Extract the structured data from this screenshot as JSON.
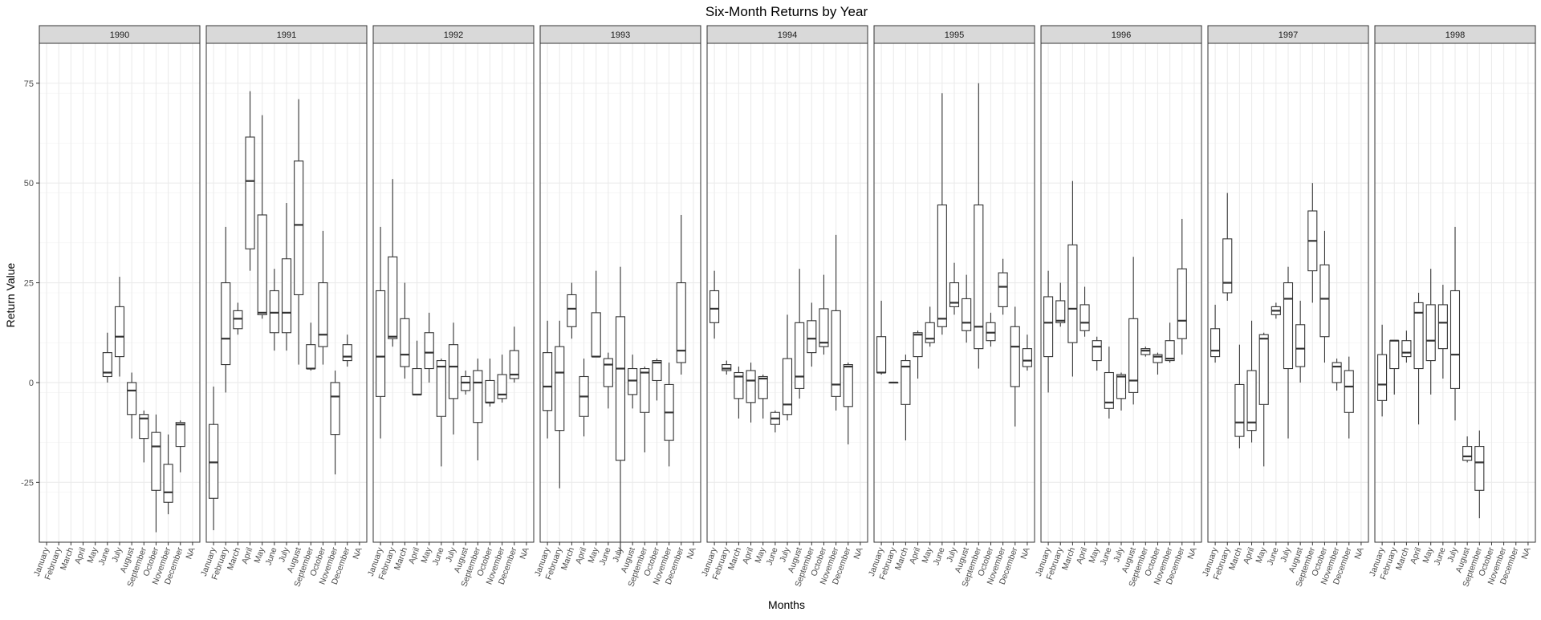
{
  "chart_data": {
    "type": "boxplot",
    "title": "Six-Month Returns by Year",
    "xlabel": "Months",
    "ylabel": "Return Value",
    "ylim": [
      -40,
      85
    ],
    "y_ticks": [
      -25,
      0,
      25,
      50,
      75
    ],
    "grid": true,
    "colors": {
      "strip_fill": "#d9d9d9",
      "panel_border": "#333333",
      "grid": "#ebebeb",
      "box": "#333333"
    },
    "categories": [
      "January",
      "February",
      "March",
      "April",
      "May",
      "June",
      "July",
      "August",
      "September",
      "October",
      "November",
      "December",
      "NA"
    ],
    "facets": [
      {
        "label": "1990",
        "boxes": [
          {
            "month": "June",
            "whislo": 0,
            "q1": 1.5,
            "med": 2.5,
            "q3": 7.5,
            "whishi": 12.5
          },
          {
            "month": "July",
            "whislo": 1.5,
            "q1": 6.5,
            "med": 11.5,
            "q3": 19,
            "whishi": 26.5
          },
          {
            "month": "August",
            "whislo": -14,
            "q1": -8,
            "med": -2,
            "q3": 0,
            "whishi": 2.5
          },
          {
            "month": "September",
            "whislo": -20,
            "q1": -14,
            "med": -9,
            "q3": -8,
            "whishi": -7
          },
          {
            "month": "October",
            "whislo": -37.5,
            "q1": -27,
            "med": -16,
            "q3": -12.5,
            "whishi": -8
          },
          {
            "month": "November",
            "whislo": -33,
            "q1": -30,
            "med": -27.5,
            "q3": -20.5,
            "whishi": -13
          },
          {
            "month": "December",
            "whislo": -22.5,
            "q1": -16,
            "med": -10.5,
            "q3": -10,
            "whishi": -9.5
          }
        ]
      },
      {
        "label": "1991",
        "boxes": [
          {
            "month": "January",
            "whislo": -37,
            "q1": -29,
            "med": -20,
            "q3": -10.5,
            "whishi": -1
          },
          {
            "month": "February",
            "whislo": -2.5,
            "q1": 4.5,
            "med": 11,
            "q3": 25,
            "whishi": 39
          },
          {
            "month": "March",
            "whislo": 12,
            "q1": 13.5,
            "med": 16,
            "q3": 18,
            "whishi": 20
          },
          {
            "month": "April",
            "whislo": 28,
            "q1": 33.5,
            "med": 50.5,
            "q3": 61.5,
            "whishi": 73
          },
          {
            "month": "May",
            "whislo": 16,
            "q1": 17,
            "med": 17.5,
            "q3": 42,
            "whishi": 67
          },
          {
            "month": "June",
            "whislo": 8,
            "q1": 12.5,
            "med": 17.5,
            "q3": 23,
            "whishi": 28.5
          },
          {
            "month": "July",
            "whislo": 8,
            "q1": 12.5,
            "med": 17.5,
            "q3": 31,
            "whishi": 45
          },
          {
            "month": "August",
            "whislo": 4.5,
            "q1": 22,
            "med": 39.5,
            "q3": 55.5,
            "whishi": 71
          },
          {
            "month": "September",
            "whislo": 3,
            "q1": 3.5,
            "med": 3.5,
            "q3": 9.5,
            "whishi": 15
          },
          {
            "month": "October",
            "whislo": 4.5,
            "q1": 9,
            "med": 12,
            "q3": 25,
            "whishi": 38
          },
          {
            "month": "November",
            "whislo": -23,
            "q1": -13,
            "med": -3.5,
            "q3": 0,
            "whishi": 3
          },
          {
            "month": "December",
            "whislo": 4,
            "q1": 5.5,
            "med": 6.5,
            "q3": 9.5,
            "whishi": 12
          }
        ]
      },
      {
        "label": "1992",
        "boxes": [
          {
            "month": "January",
            "whislo": -14,
            "q1": -3.5,
            "med": 6.5,
            "q3": 23,
            "whishi": 39
          },
          {
            "month": "February",
            "whislo": 9,
            "q1": 11,
            "med": 11.5,
            "q3": 31.5,
            "whishi": 51
          },
          {
            "month": "March",
            "whislo": 1,
            "q1": 4,
            "med": 7,
            "q3": 16,
            "whishi": 25
          },
          {
            "month": "April",
            "whislo": -3,
            "q1": -3,
            "med": -3,
            "q3": 3.5,
            "whishi": 10.5
          },
          {
            "month": "May",
            "whislo": 0,
            "q1": 3.5,
            "med": 7.5,
            "q3": 12.5,
            "whishi": 17.5
          },
          {
            "month": "June",
            "whislo": -21,
            "q1": -8.5,
            "med": 4,
            "q3": 5.5,
            "whishi": 6
          },
          {
            "month": "July",
            "whislo": -13,
            "q1": -4,
            "med": 4,
            "q3": 9.5,
            "whishi": 15
          },
          {
            "month": "August",
            "whislo": -3,
            "q1": -2,
            "med": 0,
            "q3": 1.5,
            "whishi": 3
          },
          {
            "month": "September",
            "whislo": -19.5,
            "q1": -10,
            "med": 0,
            "q3": 3,
            "whishi": 6
          },
          {
            "month": "October",
            "whislo": -6,
            "q1": -5,
            "med": -5,
            "q3": 0.5,
            "whishi": 6
          },
          {
            "month": "November",
            "whislo": -5,
            "q1": -4,
            "med": -3,
            "q3": 2,
            "whishi": 7
          },
          {
            "month": "December",
            "whislo": 0,
            "q1": 1,
            "med": 2,
            "q3": 8,
            "whishi": 14
          }
        ]
      },
      {
        "label": "1993",
        "boxes": [
          {
            "month": "January",
            "whislo": -14,
            "q1": -7,
            "med": -1,
            "q3": 7.5,
            "whishi": 15.5
          },
          {
            "month": "February",
            "whislo": -26.5,
            "q1": -12,
            "med": 2.5,
            "q3": 9,
            "whishi": 15.5
          },
          {
            "month": "March",
            "whislo": 11,
            "q1": 14,
            "med": 18.5,
            "q3": 22,
            "whishi": 25
          },
          {
            "month": "April",
            "whislo": -13.5,
            "q1": -8.5,
            "med": -3.5,
            "q3": 1.5,
            "whishi": 6
          },
          {
            "month": "May",
            "whislo": 6.5,
            "q1": 6.5,
            "med": 6.5,
            "q3": 17.5,
            "whishi": 28
          },
          {
            "month": "June",
            "whislo": -6.5,
            "q1": -1,
            "med": 4.5,
            "q3": 6,
            "whishi": 7.5
          },
          {
            "month": "July",
            "whislo": -43,
            "q1": -19.5,
            "med": 3.5,
            "q3": 16.5,
            "whishi": 29
          },
          {
            "month": "August",
            "whislo": -6.5,
            "q1": -3,
            "med": 0.5,
            "q3": 3.5,
            "whishi": 7
          },
          {
            "month": "September",
            "whislo": -17.5,
            "q1": -7.5,
            "med": 2.5,
            "q3": 3.5,
            "whishi": 4
          },
          {
            "month": "October",
            "whislo": -4.5,
            "q1": 0.5,
            "med": 5,
            "q3": 5.5,
            "whishi": 6
          },
          {
            "month": "November",
            "whislo": -21,
            "q1": -14.5,
            "med": -7.5,
            "q3": -0.5,
            "whishi": 5
          },
          {
            "month": "December",
            "whislo": 2,
            "q1": 5,
            "med": 8,
            "q3": 25,
            "whishi": 42
          }
        ]
      },
      {
        "label": "1994",
        "boxes": [
          {
            "month": "January",
            "whislo": 11,
            "q1": 15,
            "med": 18.5,
            "q3": 23,
            "whishi": 28
          },
          {
            "month": "February",
            "whislo": 2,
            "q1": 3,
            "med": 3.5,
            "q3": 4.5,
            "whishi": 5.5
          },
          {
            "month": "March",
            "whislo": -9,
            "q1": -4,
            "med": 1.5,
            "q3": 2.5,
            "whishi": 4
          },
          {
            "month": "April",
            "whislo": -10,
            "q1": -5,
            "med": 0.5,
            "q3": 3,
            "whishi": 5
          },
          {
            "month": "May",
            "whislo": -9,
            "q1": -4,
            "med": 1,
            "q3": 1.5,
            "whishi": 2
          },
          {
            "month": "June",
            "whislo": -12.5,
            "q1": -10.5,
            "med": -9,
            "q3": -7.5,
            "whishi": -7
          },
          {
            "month": "July",
            "whislo": -9.5,
            "q1": -8,
            "med": -5.5,
            "q3": 6,
            "whishi": 17
          },
          {
            "month": "August",
            "whislo": -4,
            "q1": -1.5,
            "med": 1.5,
            "q3": 15,
            "whishi": 28.5
          },
          {
            "month": "September",
            "whislo": 4,
            "q1": 7.5,
            "med": 11,
            "q3": 15.5,
            "whishi": 20
          },
          {
            "month": "October",
            "whislo": 7,
            "q1": 9,
            "med": 10,
            "q3": 18.5,
            "whishi": 27
          },
          {
            "month": "November",
            "whislo": -7,
            "q1": -3.5,
            "med": -0.5,
            "q3": 18,
            "whishi": 37
          },
          {
            "month": "December",
            "whislo": -15.5,
            "q1": -6,
            "med": 4,
            "q3": 4.5,
            "whishi": 5
          }
        ]
      },
      {
        "label": "1995",
        "boxes": [
          {
            "month": "January",
            "whislo": 2,
            "q1": 2.5,
            "med": 2.5,
            "q3": 11.5,
            "whishi": 20.5
          },
          {
            "month": "February",
            "whislo": 0,
            "q1": 0,
            "med": 0,
            "q3": 0,
            "whishi": 0
          },
          {
            "month": "March",
            "whislo": -14.5,
            "q1": -5.5,
            "med": 4,
            "q3": 5.5,
            "whishi": 7
          },
          {
            "month": "April",
            "whislo": 1,
            "q1": 6.5,
            "med": 12,
            "q3": 12.5,
            "whishi": 13
          },
          {
            "month": "May",
            "whislo": 9,
            "q1": 10,
            "med": 11,
            "q3": 15,
            "whishi": 19
          },
          {
            "month": "June",
            "whislo": 12,
            "q1": 14,
            "med": 16,
            "q3": 44.5,
            "whishi": 72.5
          },
          {
            "month": "July",
            "whislo": 17,
            "q1": 19,
            "med": 20,
            "q3": 25,
            "whishi": 30
          },
          {
            "month": "August",
            "whislo": 10,
            "q1": 13,
            "med": 15,
            "q3": 21,
            "whishi": 27
          },
          {
            "month": "September",
            "whislo": 3.5,
            "q1": 8.5,
            "med": 14,
            "q3": 44.5,
            "whishi": 75
          },
          {
            "month": "October",
            "whislo": 9,
            "q1": 10.5,
            "med": 12.5,
            "q3": 15,
            "whishi": 17.5
          },
          {
            "month": "November",
            "whislo": 17,
            "q1": 19,
            "med": 24,
            "q3": 27.5,
            "whishi": 31
          },
          {
            "month": "December",
            "whislo": -11,
            "q1": -1,
            "med": 9,
            "q3": 14,
            "whishi": 19
          },
          {
            "month": "NA",
            "whislo": 3,
            "q1": 4,
            "med": 5.5,
            "q3": 8.5,
            "whishi": 12
          }
        ]
      },
      {
        "label": "1996",
        "boxes": [
          {
            "month": "January",
            "whislo": -2.5,
            "q1": 6.5,
            "med": 15,
            "q3": 21.5,
            "whishi": 28
          },
          {
            "month": "February",
            "whislo": 14,
            "q1": 15,
            "med": 15.5,
            "q3": 20.5,
            "whishi": 25
          },
          {
            "month": "March",
            "whislo": 1.5,
            "q1": 10,
            "med": 18.5,
            "q3": 34.5,
            "whishi": 50.5
          },
          {
            "month": "April",
            "whislo": 11.5,
            "q1": 13,
            "med": 15,
            "q3": 19.5,
            "whishi": 24
          },
          {
            "month": "May",
            "whislo": 3,
            "q1": 5.5,
            "med": 9,
            "q3": 10.5,
            "whishi": 11.5
          },
          {
            "month": "June",
            "whislo": -9,
            "q1": -6.5,
            "med": -5,
            "q3": 2.5,
            "whishi": 9
          },
          {
            "month": "July",
            "whislo": -7,
            "q1": -4,
            "med": 1.5,
            "q3": 2,
            "whishi": 2.5
          },
          {
            "month": "August",
            "whislo": -5.5,
            "q1": -2.5,
            "med": 0.5,
            "q3": 16,
            "whishi": 31.5
          },
          {
            "month": "September",
            "whislo": 6.5,
            "q1": 7,
            "med": 8,
            "q3": 8.5,
            "whishi": 9
          },
          {
            "month": "October",
            "whislo": 2,
            "q1": 5,
            "med": 6.5,
            "q3": 7,
            "whishi": 7.5
          },
          {
            "month": "November",
            "whislo": 5,
            "q1": 5.5,
            "med": 6,
            "q3": 10.5,
            "whishi": 15
          },
          {
            "month": "December",
            "whislo": 7,
            "q1": 11,
            "med": 15.5,
            "q3": 28.5,
            "whishi": 41
          }
        ]
      },
      {
        "label": "1997",
        "boxes": [
          {
            "month": "January",
            "whislo": 5,
            "q1": 6.5,
            "med": 8,
            "q3": 13.5,
            "whishi": 19.5
          },
          {
            "month": "February",
            "whislo": 20.5,
            "q1": 22.5,
            "med": 25,
            "q3": 36,
            "whishi": 47.5
          },
          {
            "month": "March",
            "whislo": -16.5,
            "q1": -13.5,
            "med": -10,
            "q3": -0.5,
            "whishi": 9.5
          },
          {
            "month": "April",
            "whislo": -15,
            "q1": -12,
            "med": -10,
            "q3": 3,
            "whishi": 15.5
          },
          {
            "month": "May",
            "whislo": -21,
            "q1": -5.5,
            "med": 11,
            "q3": 12,
            "whishi": 12.5
          },
          {
            "month": "June",
            "whislo": 16,
            "q1": 17,
            "med": 18,
            "q3": 19,
            "whishi": 20
          },
          {
            "month": "July",
            "whislo": -14,
            "q1": 3.5,
            "med": 21,
            "q3": 25,
            "whishi": 29
          },
          {
            "month": "August",
            "whislo": 0,
            "q1": 4,
            "med": 8.5,
            "q3": 14.5,
            "whishi": 20.5
          },
          {
            "month": "September",
            "whislo": 20,
            "q1": 28,
            "med": 35.5,
            "q3": 43,
            "whishi": 50
          },
          {
            "month": "October",
            "whislo": 5,
            "q1": 11.5,
            "med": 21,
            "q3": 29.5,
            "whishi": 38
          },
          {
            "month": "November",
            "whislo": -2,
            "q1": 0,
            "med": 4,
            "q3": 5,
            "whishi": 6
          },
          {
            "month": "December",
            "whislo": -14,
            "q1": -7.5,
            "med": -1,
            "q3": 3,
            "whishi": 6.5
          }
        ]
      },
      {
        "label": "1998",
        "boxes": [
          {
            "month": "January",
            "whislo": -8.5,
            "q1": -4.5,
            "med": -0.5,
            "q3": 7,
            "whishi": 14.5
          },
          {
            "month": "February",
            "whislo": -3,
            "q1": 3.5,
            "med": 10.5,
            "q3": 10.5,
            "whishi": 10.5
          },
          {
            "month": "March",
            "whislo": 5,
            "q1": 6.5,
            "med": 7.5,
            "q3": 10.5,
            "whishi": 13
          },
          {
            "month": "April",
            "whislo": -10.5,
            "q1": 3.5,
            "med": 17.5,
            "q3": 20,
            "whishi": 22.5
          },
          {
            "month": "May",
            "whislo": -3,
            "q1": 5.5,
            "med": 10.5,
            "q3": 19.5,
            "whishi": 28.5
          },
          {
            "month": "June",
            "whislo": 1,
            "q1": 8.5,
            "med": 15,
            "q3": 19.5,
            "whishi": 24.5
          },
          {
            "month": "July",
            "whislo": -9.5,
            "q1": -1.5,
            "med": 7,
            "q3": 23,
            "whishi": 39
          },
          {
            "month": "August",
            "whislo": -20,
            "q1": -19.5,
            "med": -18.5,
            "q3": -16,
            "whishi": -13.5
          },
          {
            "month": "September",
            "whislo": -34,
            "q1": -27,
            "med": -20,
            "q3": -16,
            "whishi": -12
          }
        ]
      }
    ]
  }
}
